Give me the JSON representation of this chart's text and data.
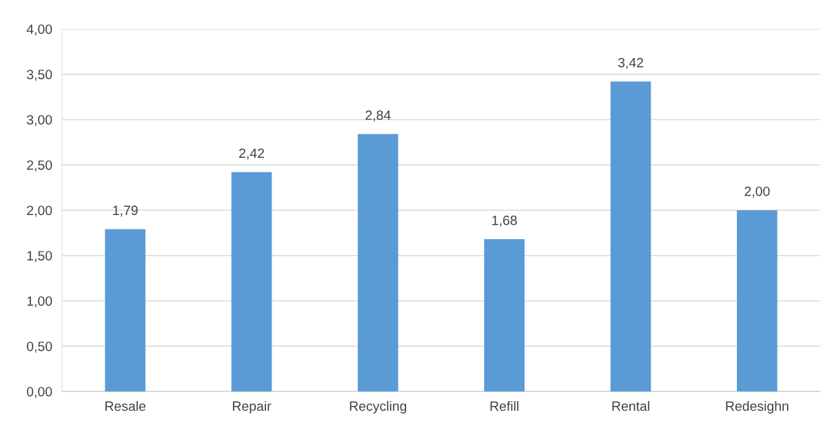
{
  "chart_data": {
    "type": "bar",
    "categories": [
      "Resale",
      "Repair",
      "Recycling",
      "Refill",
      "Rental",
      "Redesighn"
    ],
    "values": [
      1.79,
      2.42,
      2.84,
      1.68,
      3.42,
      2.0
    ],
    "value_labels": [
      "1,79",
      "2,42",
      "2,84",
      "1,68",
      "3,42",
      "2,00"
    ],
    "color": "#5b9bd5",
    "ylim": [
      0,
      4
    ],
    "yticks": [
      {
        "value": 0,
        "label": "0,00"
      },
      {
        "value": 0.5,
        "label": "0,50"
      },
      {
        "value": 1,
        "label": "1,00"
      },
      {
        "value": 1.5,
        "label": "1,50"
      },
      {
        "value": 2,
        "label": "2,00"
      },
      {
        "value": 2.5,
        "label": "2,50"
      },
      {
        "value": 3,
        "label": "3,00"
      },
      {
        "value": 3.5,
        "label": "3,50"
      },
      {
        "value": 4,
        "label": "4,00"
      }
    ],
    "grid": "y"
  }
}
